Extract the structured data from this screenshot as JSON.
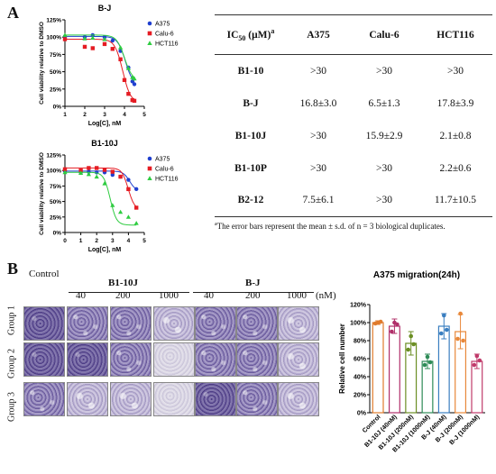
{
  "panel_a": {
    "letter": "A"
  },
  "panel_b": {
    "letter": "B"
  },
  "colors": {
    "a375": "#1f3fcf",
    "calu6": "#e51c23",
    "hct116": "#2ecc40",
    "bar_control": "#e07b2c",
    "bar_b110j_40": "#b0306a",
    "bar_b110j_200": "#6b8e23",
    "bar_b110j_1000": "#2e8b57",
    "bar_bj_40": "#3a7ec0",
    "bar_bj_200": "#e8883a",
    "bar_bj_1000": "#c03a6a"
  },
  "chart_data": [
    {
      "type": "scatter",
      "title": "B-J",
      "xlabel": "Log[C], nM",
      "ylabel": "Cell viability relative to DMSO",
      "xlim": [
        1,
        5
      ],
      "ylim": [
        0,
        125
      ],
      "xticks": [
        "1",
        "2",
        "3",
        "4",
        "5"
      ],
      "yticks": [
        "0%",
        "25%",
        "50%",
        "75%",
        "100%",
        "125%"
      ],
      "legend_position": "top-right",
      "series": [
        {
          "name": "A375",
          "color": "#1f3fcf",
          "marker": "circle",
          "x": [
            1.0,
            1.0,
            2.0,
            2.4,
            3.0,
            3.4,
            3.8,
            4.2,
            4.4,
            4.5
          ],
          "y": [
            101,
            99,
            100,
            103,
            100,
            95,
            80,
            56,
            36,
            32
          ]
        },
        {
          "name": "Calu-6",
          "color": "#e51c23",
          "marker": "square",
          "x": [
            1.0,
            2.0,
            2.4,
            3.0,
            3.4,
            3.8,
            4.0,
            4.2,
            4.4,
            4.5
          ],
          "y": [
            97,
            86,
            84,
            90,
            83,
            68,
            38,
            18,
            9,
            8
          ]
        },
        {
          "name": "HCT116",
          "color": "#2ecc40",
          "marker": "triangle",
          "x": [
            1.0,
            2.0,
            2.4,
            3.0,
            3.8,
            4.2,
            4.4,
            4.5
          ],
          "y": [
            103,
            98,
            99,
            97,
            85,
            55,
            42,
            40
          ]
        }
      ]
    },
    {
      "type": "scatter",
      "title": "B1-10J",
      "xlabel": "Log[C], nM",
      "ylabel": "Cell viability relative to DMSO",
      "xlim": [
        0,
        5
      ],
      "ylim": [
        0,
        125
      ],
      "xticks": [
        "0",
        "1",
        "2",
        "3",
        "4",
        "5"
      ],
      "yticks": [
        "0%",
        "25%",
        "50%",
        "75%",
        "100%",
        "125%"
      ],
      "legend_position": "top-right",
      "series": [
        {
          "name": "A375",
          "color": "#1f3fcf",
          "marker": "circle",
          "x": [
            0.0,
            1.0,
            1.5,
            2.0,
            2.5,
            3.0,
            3.5,
            4.0,
            4.5
          ],
          "y": [
            99,
            97,
            98,
            97,
            97,
            93,
            90,
            85,
            70
          ]
        },
        {
          "name": "Calu-6",
          "color": "#e51c23",
          "marker": "square",
          "x": [
            0.0,
            1.0,
            1.5,
            2.0,
            2.5,
            3.0,
            3.5,
            4.0,
            4.5
          ],
          "y": [
            102,
            100,
            104,
            104,
            101,
            98,
            90,
            70,
            40
          ]
        },
        {
          "name": "HCT116",
          "color": "#2ecc40",
          "marker": "triangle",
          "x": [
            0.0,
            1.0,
            1.5,
            2.0,
            2.5,
            3.0,
            3.5,
            4.0,
            4.5
          ],
          "y": [
            97,
            96,
            94,
            90,
            79,
            44,
            33,
            25,
            15
          ]
        }
      ]
    },
    {
      "type": "bar",
      "title": "A375 migration(24h)",
      "ylabel": "Relative cell number",
      "ylim": [
        0,
        120
      ],
      "yticks": [
        "0%",
        "20%",
        "40%",
        "60%",
        "80%",
        "100%",
        "120%"
      ],
      "categories": [
        "Control",
        "B1-10J (40nM)",
        "B1-10J (200nM)",
        "B1-10J (1000nM)",
        "B-J (40nM)",
        "B-J (200nM)",
        "B-J (1000nM)"
      ],
      "values": [
        100,
        96,
        77,
        57,
        96,
        90,
        57
      ],
      "errors": [
        2,
        8,
        13,
        8,
        14,
        19,
        8
      ],
      "points": [
        [
          99,
          100,
          101
        ],
        [
          90,
          100,
          98
        ],
        [
          70,
          85,
          76
        ],
        [
          53,
          62,
          56
        ],
        [
          88,
          108,
          92
        ],
        [
          82,
          110,
          80
        ],
        [
          53,
          63,
          58
        ]
      ]
    }
  ],
  "table": {
    "headers": [
      "IC50 (μM)a",
      "A375",
      "Calu-6",
      "HCT116"
    ],
    "header_ic": "IC",
    "header_sub": "50",
    "header_rest": " (μM)",
    "header_sup": "a",
    "rows": [
      {
        "compound": "B1-10",
        "a375": ">30",
        "calu6": ">30",
        "hct116": ">30"
      },
      {
        "compound": "B-J",
        "a375": "16.8±3.0",
        "calu6": "6.5±1.3",
        "hct116": "17.8±3.9"
      },
      {
        "compound": "B1-10J",
        "a375": ">30",
        "calu6": "15.9±2.9",
        "hct116": "2.1±0.8"
      },
      {
        "compound": "B1-10P",
        "a375": ">30",
        "calu6": ">30",
        "hct116": "2.2±0.6"
      },
      {
        "compound": "B2-12",
        "a375": "7.5±6.1",
        "calu6": ">30",
        "hct116": "11.7±10.5"
      }
    ],
    "footnote_sup": "a",
    "footnote": "The error bars represent the mean ± s.d. of n = 3 biological duplicates."
  },
  "micrographs": {
    "control_label": "Control",
    "group_b110j": "B1-10J",
    "group_bj": "B-J",
    "concentrations": [
      "40",
      "200",
      "1000"
    ],
    "unit": "(nM)",
    "rows": [
      "Group 1",
      "Group 2",
      "Group 3"
    ]
  }
}
